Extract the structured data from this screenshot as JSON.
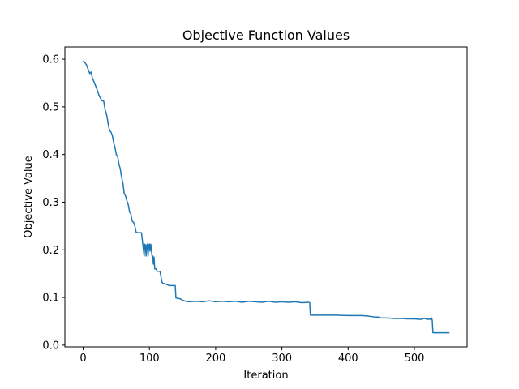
{
  "chart_data": {
    "type": "line",
    "title": "Objective Function Values",
    "xlabel": "Iteration",
    "ylabel": "Objective Value",
    "xlim": [
      -27.6,
      579.6
    ],
    "ylim": [
      -0.0036,
      0.6256
    ],
    "xticks": [
      0,
      100,
      200,
      300,
      400,
      500
    ],
    "yticks": [
      0.0,
      0.1,
      0.2,
      0.3,
      0.4,
      0.5,
      0.6
    ],
    "ytick_labels": [
      "0.0",
      "0.1",
      "0.2",
      "0.3",
      "0.4",
      "0.5",
      "0.6"
    ],
    "grid": false,
    "legend": "none",
    "series": [
      {
        "color": "#1f77b4",
        "x": [
          0,
          3,
          5,
          8,
          10,
          12,
          14,
          17,
          20,
          24,
          28,
          31,
          33,
          36,
          38,
          40,
          42,
          44,
          46,
          48,
          50,
          52,
          54,
          56,
          58,
          60,
          62,
          64,
          66,
          68,
          70,
          72,
          74,
          76,
          78,
          80,
          82,
          84,
          86,
          88,
          90,
          92,
          93,
          94,
          95,
          96,
          97,
          98,
          99,
          100,
          101,
          102,
          103,
          104,
          105,
          106,
          107,
          108,
          110,
          112,
          116,
          119,
          120,
          125,
          128,
          131,
          139,
          140,
          147,
          150,
          155,
          160,
          170,
          180,
          190,
          200,
          210,
          220,
          230,
          240,
          250,
          260,
          270,
          280,
          290,
          300,
          310,
          320,
          330,
          340,
          342,
          343,
          350,
          380,
          400,
          420,
          430,
          440,
          445,
          450,
          460,
          470,
          480,
          490,
          500,
          510,
          515,
          520,
          524,
          525,
          526,
          527,
          528,
          540,
          553
        ],
        "y": [
          0.597,
          0.592,
          0.588,
          0.577,
          0.57,
          0.573,
          0.56,
          0.55,
          0.54,
          0.524,
          0.513,
          0.512,
          0.495,
          0.48,
          0.462,
          0.45,
          0.447,
          0.44,
          0.425,
          0.415,
          0.4,
          0.396,
          0.38,
          0.37,
          0.352,
          0.34,
          0.318,
          0.313,
          0.303,
          0.295,
          0.28,
          0.275,
          0.26,
          0.258,
          0.25,
          0.237,
          0.236,
          0.236,
          0.236,
          0.236,
          0.212,
          0.187,
          0.212,
          0.21,
          0.187,
          0.21,
          0.212,
          0.187,
          0.21,
          0.212,
          0.197,
          0.212,
          0.2,
          0.187,
          0.187,
          0.17,
          0.185,
          0.16,
          0.16,
          0.155,
          0.155,
          0.132,
          0.13,
          0.128,
          0.126,
          0.125,
          0.125,
          0.099,
          0.097,
          0.094,
          0.092,
          0.091,
          0.092,
          0.091,
          0.093,
          0.091,
          0.092,
          0.091,
          0.092,
          0.09,
          0.092,
          0.091,
          0.09,
          0.092,
          0.09,
          0.091,
          0.09,
          0.091,
          0.089,
          0.09,
          0.089,
          0.063,
          0.063,
          0.063,
          0.062,
          0.062,
          0.061,
          0.059,
          0.059,
          0.057,
          0.057,
          0.056,
          0.056,
          0.055,
          0.055,
          0.054,
          0.056,
          0.054,
          0.055,
          0.053,
          0.057,
          0.052,
          0.026,
          0.026,
          0.026
        ]
      }
    ]
  }
}
